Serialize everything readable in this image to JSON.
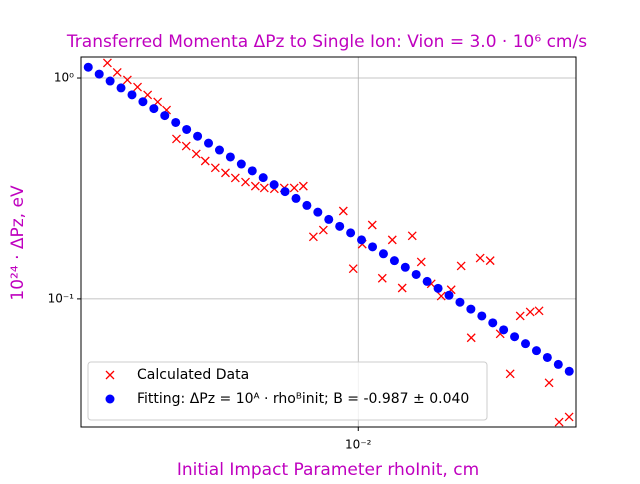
{
  "chart_data": {
    "type": "scatter",
    "title": "Transferred Momenta ΔPz to Single Ion: Vion = 3.0 · 10⁶ cm/s",
    "x_label": "Initial Impact Parameter rhoInit, cm",
    "y_label": "10²⁴ · ΔPz, eV",
    "title_color": "#bf00bf",
    "xscale": "log",
    "yscale": "log",
    "grid": true,
    "legend": "lower left",
    "xlim": [
      0.00157,
      0.0428
    ],
    "ylim": [
      0.0263,
      1.245
    ],
    "xticks": [
      {
        "value": 0.01,
        "label": "10⁻²"
      }
    ],
    "yticks": [
      {
        "value": 0.1,
        "label": "10⁻¹"
      },
      {
        "value": 1,
        "label": "10⁰"
      }
    ],
    "series": [
      {
        "name": "Calculated Data",
        "color": "#ff0000",
        "marker": "x",
        "x": [
          0.001873,
          0.002,
          0.00214,
          0.00229,
          0.00245,
          0.00262,
          0.00278,
          0.00297,
          0.00317,
          0.00339,
          0.0036,
          0.00385,
          0.00412,
          0.0044,
          0.00471,
          0.00503,
          0.00534,
          0.00571,
          0.0061,
          0.00652,
          0.00693,
          0.00741,
          0.00792,
          0.00905,
          0.00967,
          0.01027,
          0.01098,
          0.01174,
          0.01255,
          0.01341,
          0.01434,
          0.01523,
          0.01628,
          0.0174,
          0.0186,
          0.01988,
          0.02126,
          0.02257,
          0.02413,
          0.0258,
          0.02758,
          0.02949,
          0.03152,
          0.03345,
          0.03576,
          0.03824,
          0.04088
        ],
        "values": [
          1.17,
          1.06,
          0.98,
          0.91,
          0.838,
          0.779,
          0.716,
          0.53,
          0.492,
          0.453,
          0.421,
          0.392,
          0.372,
          0.353,
          0.338,
          0.324,
          0.318,
          0.315,
          0.318,
          0.318,
          0.324,
          0.191,
          0.205,
          0.25,
          0.137,
          0.177,
          0.216,
          0.124,
          0.185,
          0.112,
          0.193,
          0.147,
          0.117,
          0.103,
          0.11,
          0.141,
          0.0667,
          0.153,
          0.149,
          0.0695,
          0.0458,
          0.0837,
          0.0873,
          0.0883,
          0.0417,
          0.0277,
          0.0292
        ]
      },
      {
        "name": "Fitting: ΔPz = 10ᴬ · rhoᴮinit; B = -0.987 ± 0.040",
        "color": "#0000ff",
        "marker": "o",
        "x": [
          0.001648,
          0.001773,
          0.001907,
          0.002051,
          0.002207,
          0.002374,
          0.002554,
          0.002747,
          0.002955,
          0.003179,
          0.00342,
          0.003679,
          0.003958,
          0.004257,
          0.00458,
          0.004927,
          0.0053,
          0.005701,
          0.006133,
          0.006598,
          0.007096,
          0.007634,
          0.008212,
          0.008834,
          0.009502,
          0.01022,
          0.011,
          0.01183,
          0.01273,
          0.01369,
          0.01472,
          0.01584,
          0.01704,
          0.01833,
          0.01972,
          0.02121,
          0.02282,
          0.02455,
          0.0264,
          0.0284,
          0.03055,
          0.03287,
          0.03535,
          0.03803,
          0.04091
        ],
        "values": [
          1.119,
          1.042,
          0.969,
          0.902,
          0.839,
          0.781,
          0.727,
          0.676,
          0.629,
          0.585,
          0.545,
          0.507,
          0.472,
          0.439,
          0.408,
          0.38,
          0.354,
          0.329,
          0.306,
          0.285,
          0.265,
          0.247,
          0.229,
          0.213,
          0.199,
          0.185,
          0.172,
          0.16,
          0.149,
          0.139,
          0.129,
          0.12,
          0.1116,
          0.1038,
          0.0966,
          0.0899,
          0.0837,
          0.0779,
          0.0724,
          0.0674,
          0.0627,
          0.0583,
          0.0543,
          0.0505,
          0.047
        ]
      }
    ]
  }
}
